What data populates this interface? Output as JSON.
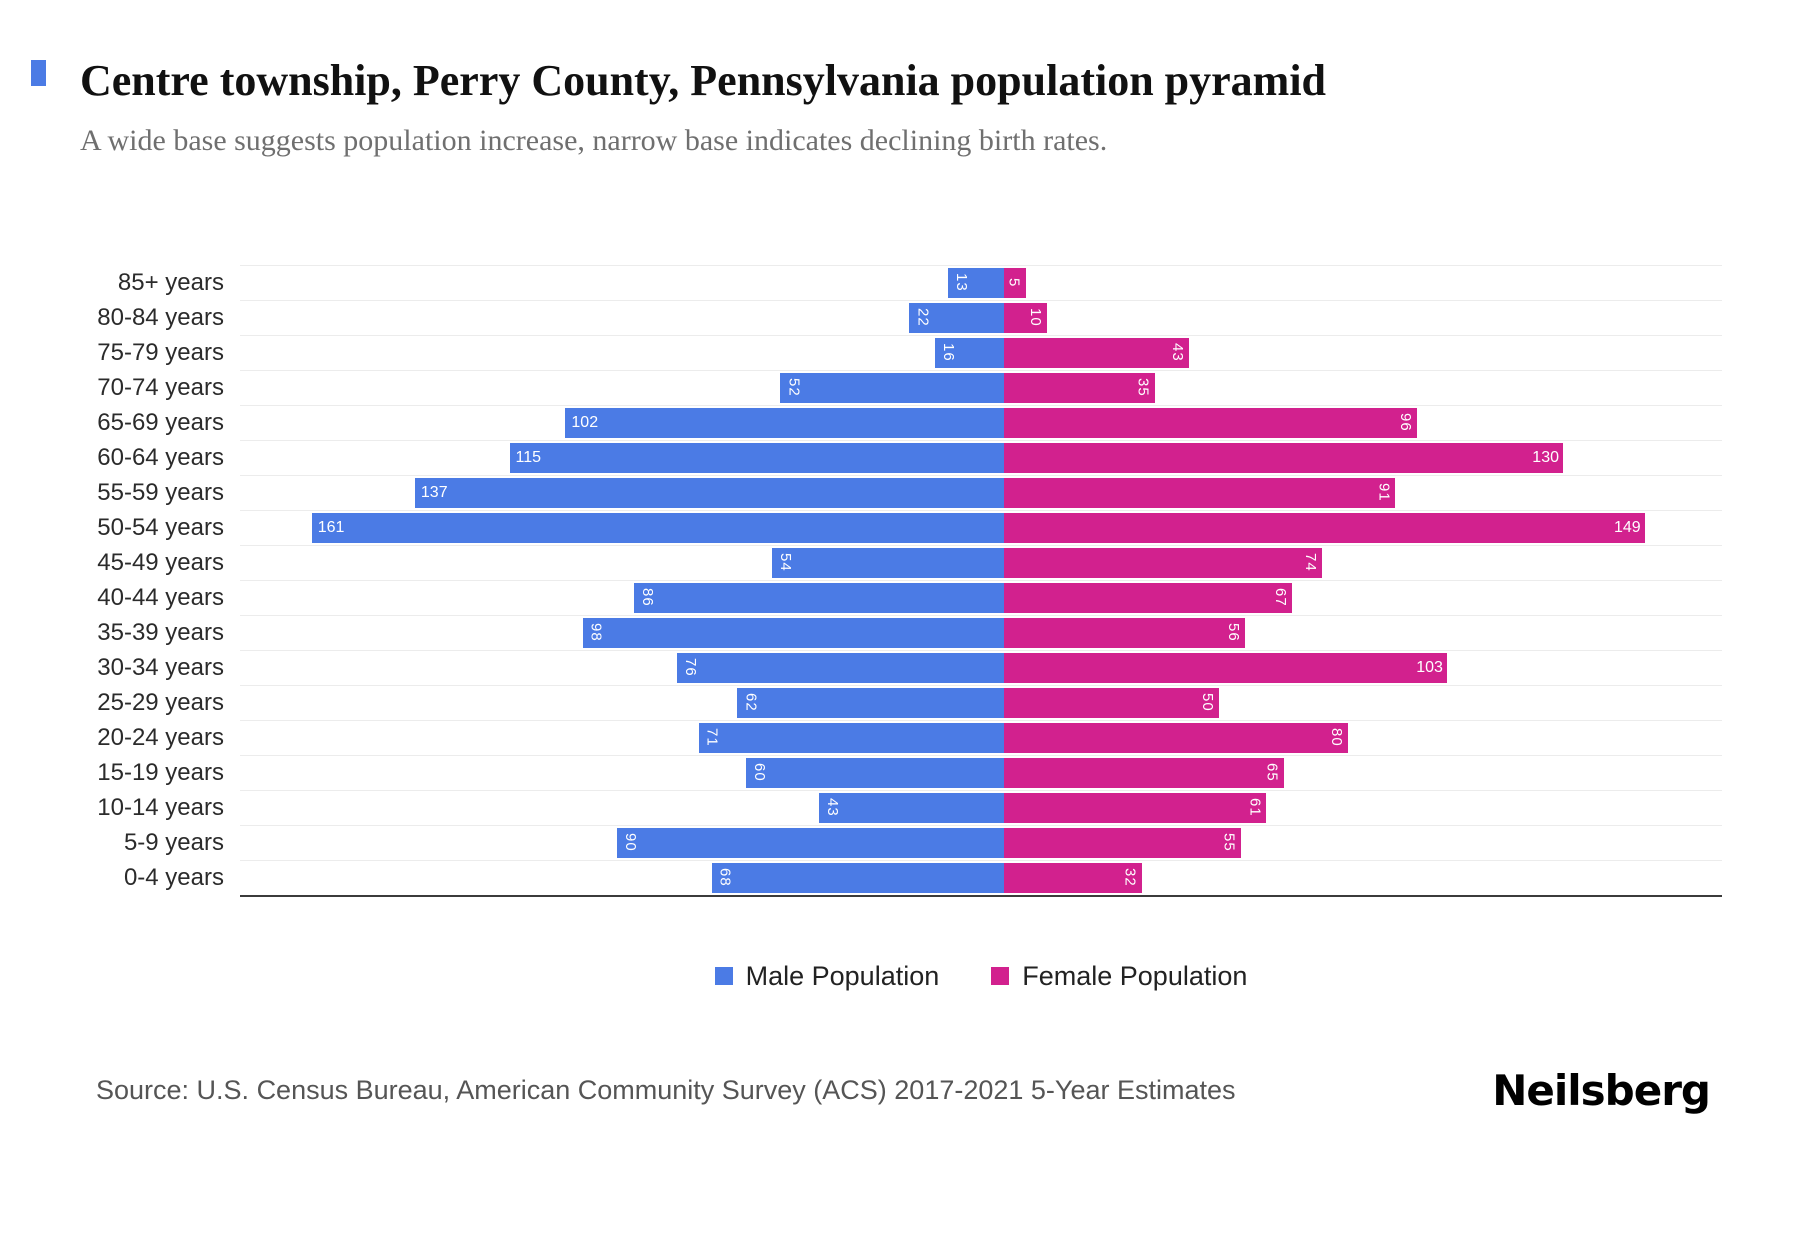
{
  "header": {
    "title": "Centre township, Perry County, Pennsylvania population pyramid",
    "subtitle": "A wide base suggests population increase, narrow base indicates declining birth rates."
  },
  "chart_data": {
    "type": "bar",
    "variant": "population-pyramid",
    "categories": [
      "85+ years",
      "80-84 years",
      "75-79 years",
      "70-74 years",
      "65-69 years",
      "60-64 years",
      "55-59 years",
      "50-54 years",
      "45-49 years",
      "40-44 years",
      "35-39 years",
      "30-34 years",
      "25-29 years",
      "20-24 years",
      "15-19 years",
      "10-14 years",
      "5-9 years",
      "0-4 years"
    ],
    "series": [
      {
        "name": "Male Population",
        "side": "left",
        "color": "#4b7be5",
        "values": [
          13,
          22,
          16,
          52,
          102,
          115,
          137,
          161,
          54,
          86,
          98,
          76,
          62,
          71,
          60,
          43,
          90,
          68
        ]
      },
      {
        "name": "Female Population",
        "side": "right",
        "color": "#d2218e",
        "values": [
          5,
          10,
          43,
          35,
          96,
          130,
          91,
          149,
          74,
          67,
          56,
          103,
          50,
          80,
          65,
          61,
          55,
          32
        ]
      }
    ],
    "xmax": 170,
    "grid": true,
    "legend_position": "bottom",
    "value_labels": "inside-end, white, rotated 90deg when value < 100"
  },
  "footer": {
    "source": "Source: U.S. Census Bureau, American Community Survey (ACS) 2017-2021 5-Year Estimates",
    "brand": "Neilsberg"
  },
  "colors": {
    "male": "#4b7be5",
    "female": "#d2218e",
    "gridline": "#ececec",
    "axis": "#3b3b3b"
  }
}
